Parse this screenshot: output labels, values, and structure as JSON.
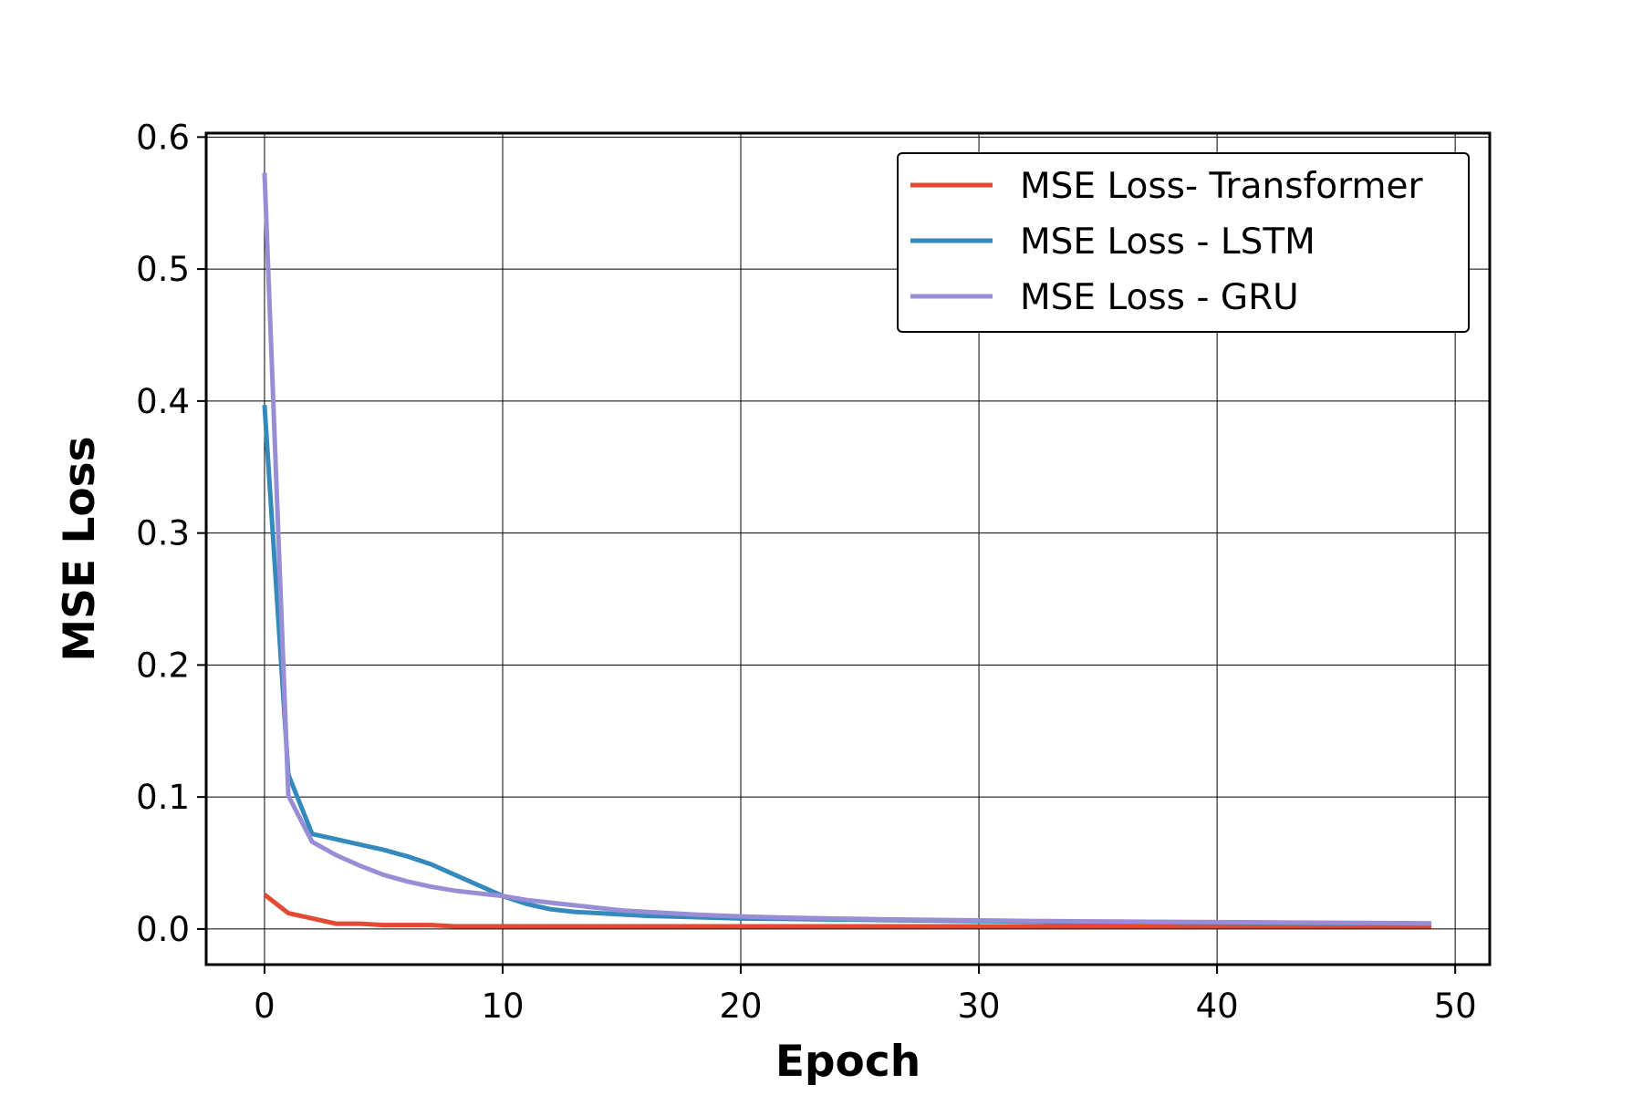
{
  "chart_data": {
    "type": "line",
    "title": "",
    "xlabel": "Epoch",
    "ylabel": "MSE Loss",
    "xlim": [
      -2.45,
      51.45
    ],
    "ylim": [
      -0.027,
      0.603
    ],
    "xticks": [
      0,
      10,
      20,
      30,
      40,
      50
    ],
    "yticks": [
      0.0,
      0.1,
      0.2,
      0.3,
      0.4,
      0.5,
      0.6
    ],
    "xtick_labels": [
      "0",
      "10",
      "20",
      "30",
      "40",
      "50"
    ],
    "ytick_labels": [
      "0.0",
      "0.1",
      "0.2",
      "0.3",
      "0.4",
      "0.5",
      "0.6"
    ],
    "grid": true,
    "legend_position": "top-right",
    "x": [
      0,
      1,
      2,
      3,
      4,
      5,
      6,
      7,
      8,
      9,
      10,
      11,
      12,
      13,
      14,
      15,
      16,
      17,
      18,
      19,
      20,
      21,
      22,
      23,
      24,
      25,
      26,
      27,
      28,
      29,
      30,
      31,
      32,
      33,
      34,
      35,
      36,
      37,
      38,
      39,
      40,
      41,
      42,
      43,
      44,
      45,
      46,
      47,
      48,
      49
    ],
    "series": [
      {
        "name": "MSE Loss- Transformer",
        "color": "#e24a33",
        "values": [
          0.026,
          0.012,
          0.008,
          0.004,
          0.004,
          0.003,
          0.003,
          0.003,
          0.002,
          0.002,
          0.002,
          0.002,
          0.002,
          0.002,
          0.002,
          0.002,
          0.002,
          0.002,
          0.002,
          0.002,
          0.002,
          0.002,
          0.002,
          0.002,
          0.002,
          0.002,
          0.002,
          0.002,
          0.002,
          0.002,
          0.002,
          0.002,
          0.002,
          0.002,
          0.002,
          0.002,
          0.002,
          0.002,
          0.002,
          0.002,
          0.002,
          0.002,
          0.002,
          0.002,
          0.002,
          0.002,
          0.002,
          0.002,
          0.002,
          0.002
        ]
      },
      {
        "name": "MSE Loss - LSTM",
        "color": "#348abd",
        "values": [
          0.397,
          0.117,
          0.072,
          0.068,
          0.064,
          0.06,
          0.055,
          0.049,
          0.041,
          0.033,
          0.025,
          0.019,
          0.015,
          0.013,
          0.012,
          0.011,
          0.01,
          0.0095,
          0.009,
          0.0085,
          0.008,
          0.0078,
          0.0076,
          0.0074,
          0.0072,
          0.007,
          0.0068,
          0.0066,
          0.0064,
          0.0062,
          0.006,
          0.0058,
          0.0056,
          0.0055,
          0.0054,
          0.0053,
          0.0052,
          0.0051,
          0.005,
          0.0049,
          0.0048,
          0.0047,
          0.0046,
          0.0045,
          0.0044,
          0.0043,
          0.0042,
          0.0041,
          0.004,
          0.004
        ]
      },
      {
        "name": "MSE Loss - GRU",
        "color": "#988ed5",
        "values": [
          0.573,
          0.101,
          0.066,
          0.056,
          0.048,
          0.041,
          0.036,
          0.032,
          0.029,
          0.027,
          0.025,
          0.022,
          0.02,
          0.018,
          0.016,
          0.014,
          0.013,
          0.012,
          0.011,
          0.0102,
          0.0095,
          0.009,
          0.0086,
          0.0082,
          0.0079,
          0.0076,
          0.0073,
          0.0071,
          0.0069,
          0.0067,
          0.0065,
          0.0063,
          0.0061,
          0.006,
          0.0058,
          0.0057,
          0.0056,
          0.0055,
          0.0054,
          0.0053,
          0.0052,
          0.0051,
          0.005,
          0.0049,
          0.0048,
          0.0047,
          0.0046,
          0.0045,
          0.0044,
          0.0043
        ]
      }
    ]
  }
}
